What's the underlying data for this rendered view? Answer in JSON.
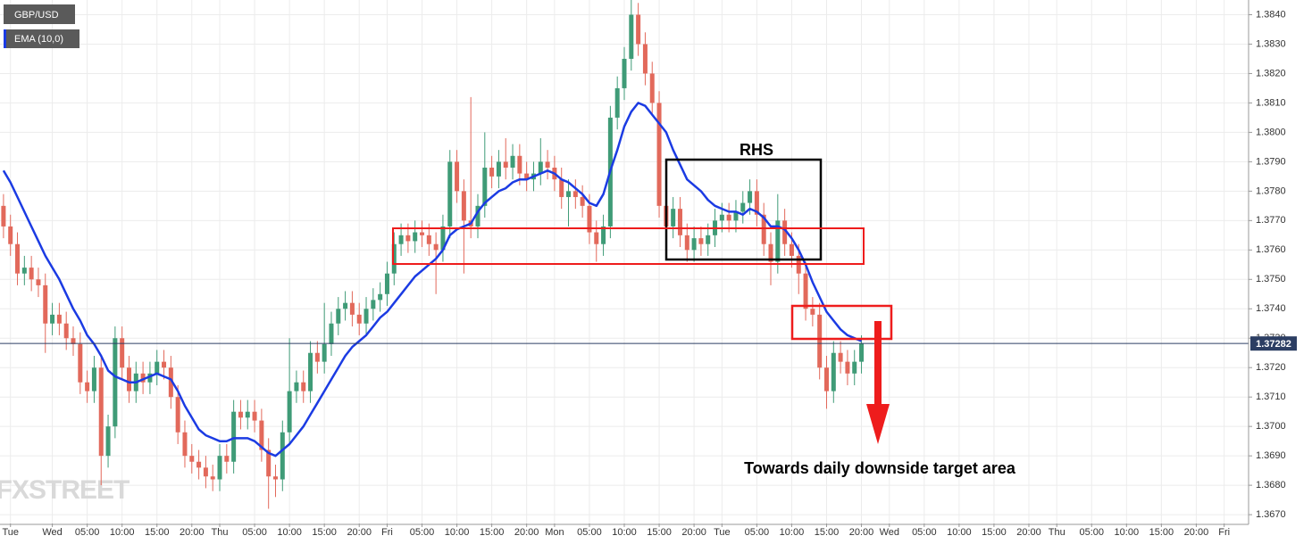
{
  "chart_data": {
    "type": "candlestick",
    "watermark": "FXSTREET",
    "annotations": [
      "RHS",
      "Towards daily downside target area"
    ],
    "grid": true,
    "ylim": [
      1.3667,
      1.3845
    ],
    "yticks": [
      {
        "value": 1.367,
        "label": "1.3670"
      },
      {
        "value": 1.368,
        "label": "1.3680"
      },
      {
        "value": 1.369,
        "label": "1.3690"
      },
      {
        "value": 1.37,
        "label": "1.3700"
      },
      {
        "value": 1.371,
        "label": "1.3710"
      },
      {
        "value": 1.372,
        "label": "1.3720"
      },
      {
        "value": 1.373,
        "label": "1.3730"
      },
      {
        "value": 1.374,
        "label": "1.3740"
      },
      {
        "value": 1.375,
        "label": "1.3750"
      },
      {
        "value": 1.376,
        "label": "1.3760"
      },
      {
        "value": 1.377,
        "label": "1.3770"
      },
      {
        "value": 1.378,
        "label": "1.3780"
      },
      {
        "value": 1.379,
        "label": "1.3790"
      },
      {
        "value": 1.38,
        "label": "1.3800"
      },
      {
        "value": 1.381,
        "label": "1.3810"
      },
      {
        "value": 1.382,
        "label": "1.3820"
      },
      {
        "value": 1.383,
        "label": "1.3830"
      },
      {
        "value": 1.384,
        "label": "1.3840"
      }
    ],
    "categories": [
      null,
      "Tue",
      null,
      null,
      null,
      null,
      null,
      "Wed",
      null,
      null,
      null,
      null,
      "05:00",
      null,
      null,
      null,
      null,
      "10:00",
      null,
      null,
      null,
      null,
      "15:00",
      null,
      null,
      null,
      null,
      "20:00",
      null,
      null,
      null,
      "Thu",
      null,
      null,
      null,
      null,
      "05:00",
      null,
      null,
      null,
      null,
      "10:00",
      null,
      null,
      null,
      null,
      "15:00",
      null,
      null,
      null,
      null,
      "20:00",
      null,
      null,
      null,
      "Fri",
      null,
      null,
      null,
      null,
      "05:00",
      null,
      null,
      null,
      null,
      "10:00",
      null,
      null,
      null,
      null,
      "15:00",
      null,
      null,
      null,
      null,
      "20:00",
      null,
      null,
      null,
      "Mon",
      null,
      null,
      null,
      null,
      "05:00",
      null,
      null,
      null,
      null,
      "10:00",
      null,
      null,
      null,
      null,
      "15:00",
      null,
      null,
      null,
      null,
      "20:00",
      null,
      null,
      null,
      "Tue",
      null,
      null,
      null,
      null,
      "05:00",
      null,
      null,
      null,
      null,
      "10:00",
      null,
      null,
      null,
      null,
      "15:00",
      null,
      null,
      null,
      null,
      "20:00",
      null,
      null,
      null,
      "Wed",
      null,
      null,
      null,
      null,
      "05:00",
      null,
      null,
      null,
      null,
      "10:00",
      null,
      null,
      null,
      null,
      "15:00",
      null,
      null,
      null,
      null,
      "20:00",
      null,
      null,
      null,
      "Thu",
      null,
      null,
      null,
      null,
      "05:00",
      null,
      null,
      null,
      null,
      "10:00",
      null,
      null,
      null,
      null,
      "15:00",
      null,
      null,
      null,
      null,
      "20:00",
      null,
      null,
      null,
      "Fri",
      null,
      null,
      null
    ],
    "series": [
      {
        "name": "GBP/USD",
        "up_color": "#3f9b77",
        "down_color": "#e2695b",
        "open": [
          1.3775,
          1.3768,
          1.3762,
          1.3752,
          1.3754,
          1.375,
          1.3748,
          1.3735,
          1.3738,
          1.3735,
          1.373,
          1.3728,
          1.3715,
          1.3712,
          1.372,
          1.369,
          1.37,
          1.373,
          1.372,
          1.3712,
          1.3718,
          1.3715,
          1.3718,
          1.3722,
          1.372,
          1.371,
          1.3698,
          1.369,
          1.3688,
          1.3686,
          1.3683,
          1.3682,
          1.369,
          1.3688,
          1.3705,
          1.3703,
          1.3705,
          1.3702,
          1.3692,
          1.3683,
          1.3682,
          1.3698,
          1.3712,
          1.3715,
          1.3712,
          1.3725,
          1.3722,
          1.3728,
          1.3735,
          1.374,
          1.3742,
          1.3738,
          1.3735,
          1.374,
          1.3743,
          1.3745,
          1.3752,
          1.3762,
          1.3765,
          1.3763,
          1.3766,
          1.3765,
          1.3762,
          1.376,
          1.3768,
          1.379,
          1.378,
          1.377,
          1.3768,
          1.3775,
          1.3788,
          1.3785,
          1.379,
          1.3788,
          1.3792,
          1.3786,
          1.3784,
          1.3786,
          1.379,
          1.3788,
          1.3784,
          1.3778,
          1.378,
          1.3778,
          1.3775,
          1.3766,
          1.3762,
          1.3768,
          1.3805,
          1.3815,
          1.3825,
          1.384,
          1.383,
          1.382,
          1.381,
          1.3775,
          1.3768,
          1.3774,
          1.3765,
          1.376,
          1.3764,
          1.3762,
          1.3765,
          1.377,
          1.3772,
          1.377,
          1.3773,
          1.3776,
          1.378,
          1.3772,
          1.3762,
          1.3756,
          1.377,
          1.3762,
          1.3758,
          1.3752,
          1.374,
          1.3738,
          1.372,
          1.3712,
          1.3725,
          1.3722,
          1.3718,
          1.3722,
          null,
          null,
          null,
          null,
          null,
          null,
          null,
          null,
          null,
          null,
          null,
          null,
          null,
          null,
          null,
          null,
          null,
          null,
          null,
          null,
          null,
          null,
          null,
          null,
          null,
          null,
          null,
          null,
          null,
          null,
          null,
          null,
          null,
          null,
          null,
          null,
          null,
          null,
          null,
          null,
          null,
          null,
          null,
          null,
          null,
          null,
          null,
          null,
          null,
          null,
          null,
          null,
          null,
          null,
          null
        ],
        "high": [
          1.3779,
          1.3772,
          1.3766,
          1.3758,
          1.3758,
          1.3754,
          1.3752,
          1.3742,
          1.3742,
          1.3739,
          1.3734,
          1.3732,
          1.3719,
          1.3724,
          1.3724,
          1.3704,
          1.3734,
          1.3734,
          1.3724,
          1.3722,
          1.3722,
          1.3722,
          1.3726,
          1.3726,
          1.3724,
          1.3714,
          1.3702,
          1.3694,
          1.3692,
          1.369,
          1.3687,
          1.3694,
          1.3694,
          1.3709,
          1.3709,
          1.3709,
          1.3709,
          1.3706,
          1.3696,
          1.3687,
          1.3702,
          1.373,
          1.3719,
          1.3719,
          1.3729,
          1.3729,
          1.3742,
          1.3739,
          1.3744,
          1.3746,
          1.3746,
          1.3742,
          1.3744,
          1.3747,
          1.3749,
          1.3756,
          1.3766,
          1.3769,
          1.3769,
          1.377,
          1.377,
          1.3769,
          1.3766,
          1.3772,
          1.3794,
          1.3794,
          1.3784,
          1.3812,
          1.3779,
          1.38,
          1.3792,
          1.3794,
          1.3798,
          1.3796,
          1.3796,
          1.379,
          1.379,
          1.3798,
          1.3794,
          1.3792,
          1.3788,
          1.3784,
          1.3784,
          1.3782,
          1.3779,
          1.377,
          1.3772,
          1.3809,
          1.3819,
          1.3829,
          1.3845,
          1.3844,
          1.3834,
          1.3824,
          1.3814,
          1.3779,
          1.3778,
          1.3778,
          1.3769,
          1.3768,
          1.3768,
          1.3769,
          1.3774,
          1.3776,
          1.3776,
          1.3777,
          1.378,
          1.3784,
          1.3784,
          1.3776,
          1.3766,
          1.3779,
          1.3774,
          1.3766,
          1.3762,
          1.3756,
          1.3744,
          1.3742,
          1.3724,
          1.3729,
          1.3729,
          1.3726,
          1.3726,
          1.3731,
          null,
          null,
          null,
          null,
          null,
          null,
          null,
          null,
          null,
          null,
          null,
          null,
          null,
          null,
          null,
          null,
          null,
          null,
          null,
          null,
          null,
          null,
          null,
          null,
          null,
          null,
          null,
          null,
          null,
          null,
          null,
          null,
          null,
          null,
          null,
          null,
          null,
          null,
          null,
          null,
          null,
          null,
          null,
          null,
          null,
          null,
          null,
          null,
          null,
          null,
          null,
          null,
          null,
          null,
          null
        ],
        "low": [
          1.3764,
          1.3758,
          1.3748,
          1.3748,
          1.3746,
          1.3744,
          1.3725,
          1.3731,
          1.3731,
          1.3726,
          1.3724,
          1.3711,
          1.3708,
          1.3708,
          1.368,
          1.3686,
          1.3696,
          1.3716,
          1.3708,
          1.3708,
          1.3711,
          1.3711,
          1.3714,
          1.3716,
          1.3706,
          1.3694,
          1.3686,
          1.3684,
          1.3682,
          1.3679,
          1.3678,
          1.3678,
          1.3684,
          1.3684,
          1.3699,
          1.3699,
          1.3698,
          1.3688,
          1.3672,
          1.3676,
          1.3678,
          1.3694,
          1.3708,
          1.3708,
          1.3708,
          1.3718,
          1.3718,
          1.3724,
          1.3731,
          1.3736,
          1.3734,
          1.3731,
          1.3731,
          1.3736,
          1.3739,
          1.3741,
          1.3748,
          1.3758,
          1.3759,
          1.3759,
          1.3761,
          1.3758,
          1.3745,
          1.3756,
          1.3764,
          1.3776,
          1.3752,
          1.3764,
          1.3764,
          1.3771,
          1.3781,
          1.3781,
          1.3784,
          1.3784,
          1.3782,
          1.378,
          1.378,
          1.3782,
          1.3784,
          1.378,
          1.3774,
          1.3768,
          1.3774,
          1.3771,
          1.3762,
          1.3756,
          1.3758,
          1.3764,
          1.3801,
          1.3811,
          1.3821,
          1.3826,
          1.3816,
          1.3806,
          1.3771,
          1.3764,
          1.3764,
          1.3761,
          1.3756,
          1.3756,
          1.3758,
          1.3758,
          1.3761,
          1.3766,
          1.3766,
          1.3766,
          1.3769,
          1.3772,
          1.3768,
          1.3758,
          1.3748,
          1.3752,
          1.3758,
          1.3754,
          1.3745,
          1.3736,
          1.3734,
          1.3716,
          1.3706,
          1.3708,
          1.3718,
          1.3714,
          1.3714,
          1.3718,
          null,
          null,
          null,
          null,
          null,
          null,
          null,
          null,
          null,
          null,
          null,
          null,
          null,
          null,
          null,
          null,
          null,
          null,
          null,
          null,
          null,
          null,
          null,
          null,
          null,
          null,
          null,
          null,
          null,
          null,
          null,
          null,
          null,
          null,
          null,
          null,
          null,
          null,
          null,
          null,
          null,
          null,
          null,
          null,
          null,
          null,
          null,
          null,
          null,
          null,
          null,
          null,
          null,
          null,
          null
        ],
        "close": [
          1.3768,
          1.3762,
          1.3752,
          1.3754,
          1.375,
          1.3748,
          1.3735,
          1.3738,
          1.3735,
          1.373,
          1.3728,
          1.3715,
          1.3712,
          1.372,
          1.369,
          1.37,
          1.373,
          1.372,
          1.3712,
          1.3718,
          1.3715,
          1.3718,
          1.3722,
          1.372,
          1.371,
          1.3698,
          1.369,
          1.3688,
          1.3686,
          1.3683,
          1.3682,
          1.369,
          1.3688,
          1.3705,
          1.3703,
          1.3705,
          1.3702,
          1.3692,
          1.3683,
          1.3682,
          1.3698,
          1.3712,
          1.3715,
          1.3712,
          1.3725,
          1.3722,
          1.3728,
          1.3735,
          1.374,
          1.3742,
          1.3738,
          1.3735,
          1.374,
          1.3743,
          1.3745,
          1.3752,
          1.3762,
          1.3765,
          1.3763,
          1.3766,
          1.3765,
          1.3762,
          1.376,
          1.3768,
          1.379,
          1.378,
          1.377,
          1.3768,
          1.3775,
          1.3788,
          1.3785,
          1.379,
          1.3788,
          1.3792,
          1.3786,
          1.3784,
          1.3786,
          1.379,
          1.3788,
          1.3784,
          1.3778,
          1.378,
          1.3778,
          1.3775,
          1.3766,
          1.3762,
          1.3768,
          1.3805,
          1.3815,
          1.3825,
          1.384,
          1.383,
          1.382,
          1.381,
          1.3775,
          1.3768,
          1.3774,
          1.3765,
          1.376,
          1.3764,
          1.3762,
          1.3765,
          1.377,
          1.3772,
          1.377,
          1.3773,
          1.3776,
          1.378,
          1.3772,
          1.3762,
          1.3756,
          1.377,
          1.3762,
          1.3758,
          1.3752,
          1.374,
          1.3738,
          1.372,
          1.3712,
          1.3725,
          1.3722,
          1.3718,
          1.3722,
          1.37282,
          null,
          null,
          null,
          null,
          null,
          null,
          null,
          null,
          null,
          null,
          null,
          null,
          null,
          null,
          null,
          null,
          null,
          null,
          null,
          null,
          null,
          null,
          null,
          null,
          null,
          null,
          null,
          null,
          null,
          null,
          null,
          null,
          null,
          null,
          null,
          null,
          null,
          null,
          null,
          null,
          null,
          null,
          null,
          null,
          null,
          null,
          null,
          null,
          null,
          null,
          null,
          null,
          null,
          null,
          null
        ]
      },
      {
        "name": "EMA (10,0)",
        "color": "#1b3be3",
        "values": [
          1.3787,
          1.3783,
          1.3778,
          1.3773,
          1.3768,
          1.3763,
          1.3758,
          1.3754,
          1.375,
          1.3745,
          1.374,
          1.3736,
          1.3731,
          1.3728,
          1.3724,
          1.3719,
          1.3717,
          1.3716,
          1.3715,
          1.3715,
          1.3716,
          1.3717,
          1.3718,
          1.3717,
          1.3716,
          1.3712,
          1.3707,
          1.3703,
          1.3699,
          1.3697,
          1.3696,
          1.3695,
          1.3695,
          1.3696,
          1.3696,
          1.3696,
          1.3695,
          1.3693,
          1.3691,
          1.369,
          1.3692,
          1.3694,
          1.3697,
          1.37,
          1.3704,
          1.3708,
          1.3712,
          1.3716,
          1.372,
          1.3724,
          1.3727,
          1.3729,
          1.3731,
          1.3734,
          1.3737,
          1.3739,
          1.3742,
          1.3745,
          1.3748,
          1.3751,
          1.3753,
          1.3755,
          1.3757,
          1.376,
          1.3765,
          1.3767,
          1.3768,
          1.3769,
          1.3773,
          1.3776,
          1.3778,
          1.378,
          1.3781,
          1.3783,
          1.3784,
          1.3784,
          1.3785,
          1.3786,
          1.3787,
          1.3786,
          1.3784,
          1.3783,
          1.3781,
          1.3779,
          1.3776,
          1.3775,
          1.3779,
          1.3787,
          1.3794,
          1.3802,
          1.3807,
          1.381,
          1.3809,
          1.3806,
          1.3803,
          1.38,
          1.3794,
          1.3789,
          1.3784,
          1.3782,
          1.378,
          1.3777,
          1.3775,
          1.3774,
          1.3773,
          1.3773,
          1.3772,
          1.3774,
          1.3773,
          1.3771,
          1.3768,
          1.3768,
          1.3767,
          1.3764,
          1.376,
          1.3755,
          1.3749,
          1.3744,
          1.3739,
          1.3736,
          1.3733,
          1.3731,
          1.373,
          1.3729,
          null,
          null,
          null,
          null,
          null,
          null,
          null,
          null,
          null,
          null,
          null,
          null,
          null,
          null,
          null,
          null,
          null,
          null,
          null,
          null,
          null,
          null,
          null,
          null,
          null,
          null,
          null,
          null,
          null,
          null,
          null,
          null,
          null,
          null,
          null,
          null,
          null,
          null,
          null,
          null,
          null,
          null,
          null,
          null,
          null,
          null,
          null,
          null,
          null,
          null,
          null,
          null,
          null,
          null,
          null
        ]
      }
    ]
  }
}
